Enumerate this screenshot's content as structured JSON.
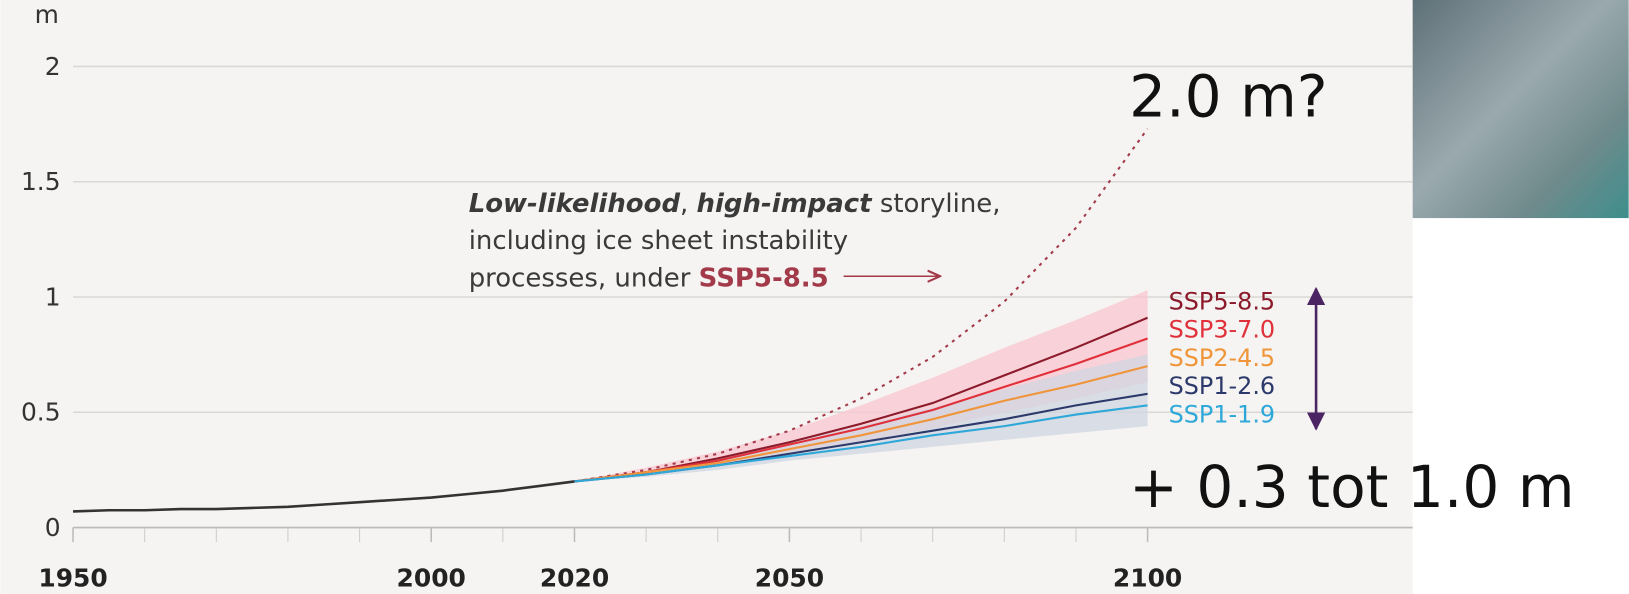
{
  "chart_data": {
    "type": "line",
    "unit": "m",
    "xlim": [
      1950,
      2137
    ],
    "ylim": [
      0,
      2
    ],
    "xticks": [
      1950,
      2000,
      2020,
      2050,
      2100
    ],
    "xminorticks": [
      1960,
      1970,
      1980,
      1990,
      2010,
      2030,
      2040,
      2060,
      2070,
      2080,
      2090
    ],
    "yticks": [
      0,
      0.5,
      1,
      1.5,
      2
    ],
    "grid": true,
    "historical": {
      "color": "#333333",
      "x": [
        1950,
        1955,
        1960,
        1965,
        1970,
        1975,
        1980,
        1985,
        1990,
        1995,
        2000,
        2005,
        2010,
        2015,
        2020
      ],
      "values": [
        0.07,
        0.075,
        0.075,
        0.08,
        0.08,
        0.085,
        0.09,
        0.1,
        0.11,
        0.12,
        0.13,
        0.145,
        0.16,
        0.18,
        0.2
      ]
    },
    "x": [
      2020,
      2030,
      2040,
      2050,
      2060,
      2070,
      2080,
      2090,
      2100
    ],
    "bands": [
      {
        "color": "#f9c6cf",
        "low": [
          0.2,
          0.23,
          0.27,
          0.32,
          0.37,
          0.43,
          0.5,
          0.56,
          0.63
        ],
        "high": [
          0.2,
          0.26,
          0.33,
          0.42,
          0.53,
          0.65,
          0.78,
          0.9,
          1.03
        ]
      },
      {
        "color": "#cfd6e2",
        "low": [
          0.2,
          0.22,
          0.25,
          0.29,
          0.32,
          0.35,
          0.38,
          0.41,
          0.44
        ],
        "high": [
          0.2,
          0.24,
          0.3,
          0.37,
          0.44,
          0.52,
          0.6,
          0.68,
          0.75
        ]
      }
    ],
    "series": [
      {
        "name": "SSP5-8.5",
        "color": "#8b1a2b",
        "values": [
          0.2,
          0.24,
          0.3,
          0.37,
          0.45,
          0.54,
          0.66,
          0.78,
          0.91
        ]
      },
      {
        "name": "SSP3-7.0",
        "color": "#e0303a",
        "values": [
          0.2,
          0.24,
          0.29,
          0.36,
          0.43,
          0.51,
          0.61,
          0.71,
          0.82
        ]
      },
      {
        "name": "SSP2-4.5",
        "color": "#f0953a",
        "values": [
          0.2,
          0.24,
          0.28,
          0.34,
          0.4,
          0.47,
          0.55,
          0.62,
          0.7
        ]
      },
      {
        "name": "SSP1-2.6",
        "color": "#2c3a6b",
        "values": [
          0.2,
          0.23,
          0.27,
          0.32,
          0.37,
          0.42,
          0.47,
          0.53,
          0.58
        ]
      },
      {
        "name": "SSP1-1.9",
        "color": "#2ea8d8",
        "values": [
          0.2,
          0.23,
          0.27,
          0.31,
          0.35,
          0.4,
          0.44,
          0.49,
          0.53
        ]
      }
    ],
    "storyline": {
      "color": "#a33a4a",
      "values": [
        0.2,
        0.25,
        0.32,
        0.42,
        0.56,
        0.74,
        0.98,
        1.3,
        1.73
      ]
    },
    "annotation": [
      "Low-likelihood",
      ", ",
      "high-impact",
      " storyline,",
      "including ice sheet instability",
      "processes, under ",
      "SSP5-8.5"
    ],
    "callout_top": "2.0 m?",
    "callout_bottom": "+ 0.3 tot 1.0 m"
  }
}
